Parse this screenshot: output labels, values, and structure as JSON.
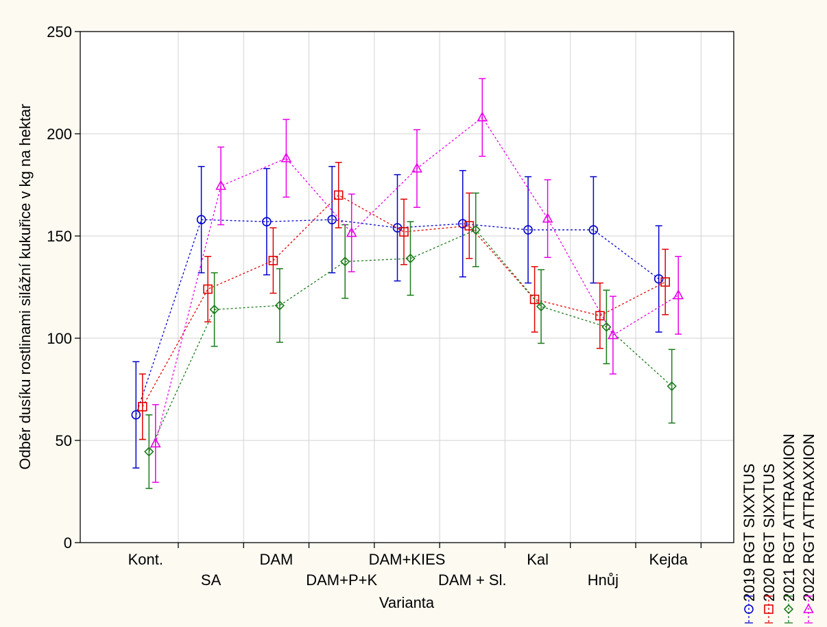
{
  "chart_data": {
    "type": "line",
    "xlabel": "Varianta",
    "ylabel": "Odběr dusíku rostlinami silážní kukuřice v kg na hektar",
    "ylim": [
      0,
      250
    ],
    "yticks": [
      0,
      50,
      100,
      150,
      200,
      250
    ],
    "grid": true,
    "error_bars": true,
    "legend_position": "right, rotated vertical",
    "categories": [
      "Kont.",
      "SA",
      "DAM",
      "DAM+P+K",
      "DAM+KIES",
      "DAM + Sl.",
      "Kal",
      "Hnůj",
      "Kejda"
    ],
    "series": [
      {
        "name": "2019 RGT SIXXTUS",
        "color": "#0000cc",
        "marker": "circle",
        "values": [
          62.5,
          158,
          157,
          158,
          154,
          156,
          153,
          153,
          129
        ],
        "err": [
          26,
          26,
          26,
          26,
          26,
          26,
          26,
          26,
          26
        ]
      },
      {
        "name": "2020 RGT SIXXTUS",
        "color": "#e00000",
        "marker": "square",
        "values": [
          66.5,
          124,
          138,
          170,
          152,
          155,
          119,
          111,
          127.5
        ],
        "err": [
          16,
          16,
          16,
          16,
          16,
          16,
          16,
          16,
          16
        ]
      },
      {
        "name": "2021 RGT ATTRAXXION",
        "color": "#1a7a1a",
        "marker": "diamond",
        "values": [
          44.5,
          114,
          116,
          137.5,
          139,
          153,
          115.5,
          105.5,
          76.5
        ],
        "err": [
          18,
          18,
          18,
          18,
          18,
          18,
          18,
          18,
          18
        ]
      },
      {
        "name": "2022 RGT ATTRAXXION",
        "color": "#e800e8",
        "marker": "triangle",
        "values": [
          48.5,
          174.5,
          188,
          151.5,
          183,
          208,
          158.5,
          101.5,
          121
        ],
        "err": [
          19,
          19,
          19,
          19,
          19,
          19,
          19,
          19,
          19
        ]
      }
    ]
  }
}
